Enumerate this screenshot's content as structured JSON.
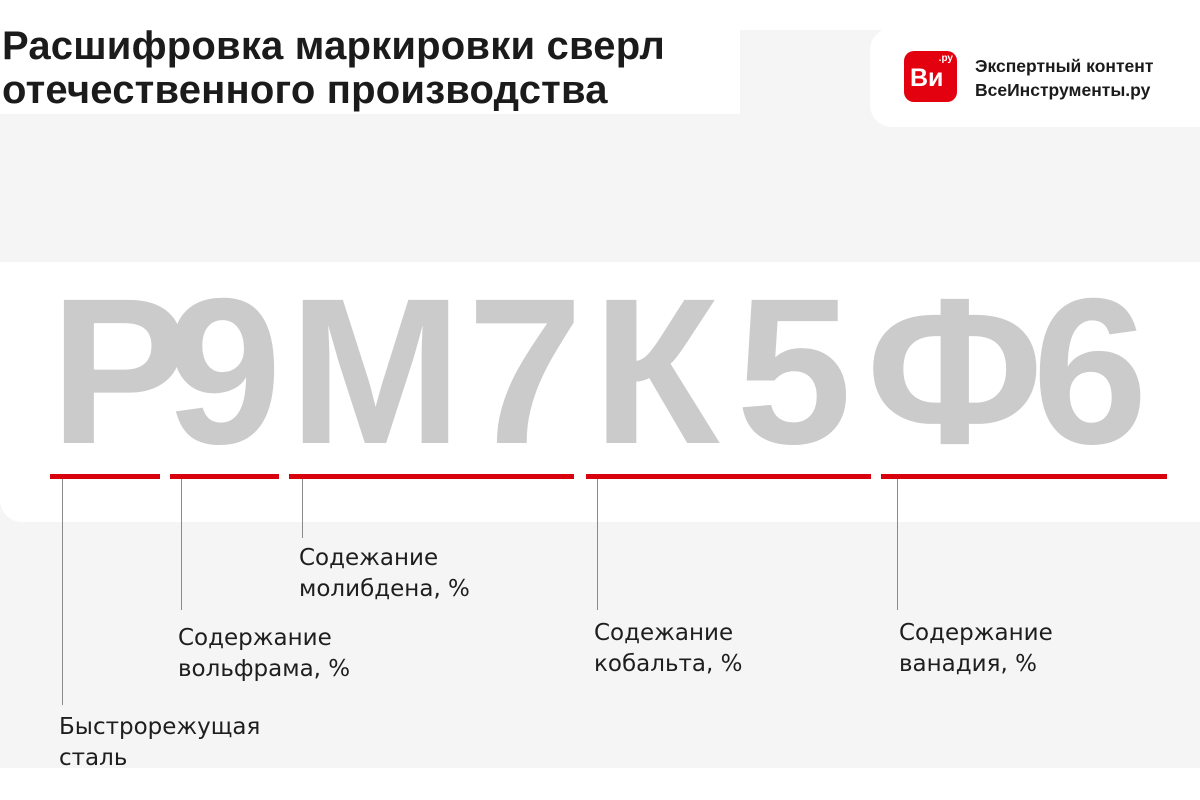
{
  "title": {
    "line1": "Расшифровка маркировки сверл",
    "line2": "отечественного производства"
  },
  "logo": {
    "mark": "Ви",
    "mark_sup": ".ру",
    "line1": "Экспертный контент",
    "line2": "ВсеИнструменты.ру",
    "brand_color": "#e3000f"
  },
  "marking": {
    "letters": [
      "Р",
      "9",
      "М",
      "7",
      "К",
      "5",
      "Ф",
      "6"
    ],
    "letter_color": "#cbcbcb",
    "underline_color": "#d9000d"
  },
  "labels": [
    {
      "line1": "Быстрорежущая",
      "line2": "сталь"
    },
    {
      "line1": "Содержание",
      "line2": "вольфрама, %"
    },
    {
      "line1": "Содежание",
      "line2": "молибдена, %"
    },
    {
      "line1": "Содежание",
      "line2": "кобальта, %"
    },
    {
      "line1": "Содержание",
      "line2": "ванадия, %"
    }
  ]
}
